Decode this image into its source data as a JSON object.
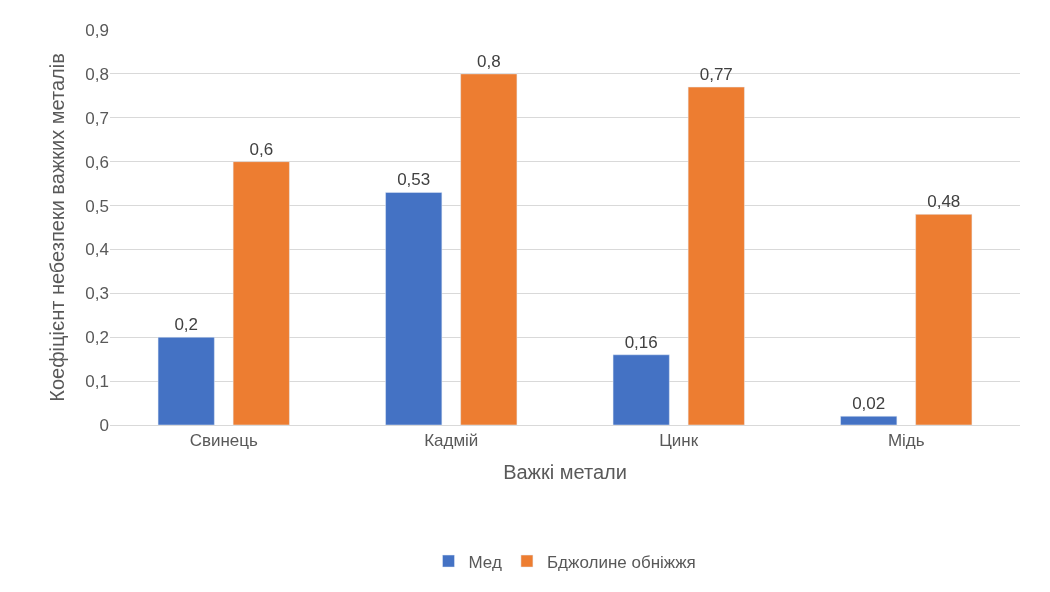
{
  "chart_data": {
    "type": "bar",
    "xlabel": "Важкі метали",
    "ylabel": "Коефіцієнт небезпеки важких металів",
    "categories": [
      "Свинець",
      "Кадмій",
      "Цинк",
      "Мідь"
    ],
    "series": [
      {
        "name": "Мед",
        "color": "#4472c4",
        "values": [
          0.2,
          0.53,
          0.16,
          0.02
        ],
        "value_labels": [
          "0,2",
          "0,53",
          "0,16",
          "0,02"
        ]
      },
      {
        "name": "Бджолине обніжжя",
        "color": "#ed7d31",
        "values": [
          0.6,
          0.8,
          0.77,
          0.48
        ],
        "value_labels": [
          "0,6",
          "0,8",
          "0,77",
          "0,48"
        ]
      }
    ],
    "ylim": [
      0,
      0.9
    ],
    "yticks": [
      0,
      {
        "value": 0.1,
        "label": "0,1"
      },
      {
        "value": 0.2,
        "label": "0,2"
      },
      {
        "value": 0.3,
        "label": "0,3"
      },
      {
        "value": 0.4,
        "label": "0,4"
      },
      {
        "value": 0.5,
        "label": "0,5"
      },
      {
        "value": 0.6,
        "label": "0,6"
      },
      {
        "value": 0.7,
        "label": "0,7"
      },
      {
        "value": 0.8,
        "label": "0,8"
      },
      {
        "value": 0.9,
        "label": "0,9"
      }
    ],
    "grid": "y",
    "legend": "bottom"
  }
}
